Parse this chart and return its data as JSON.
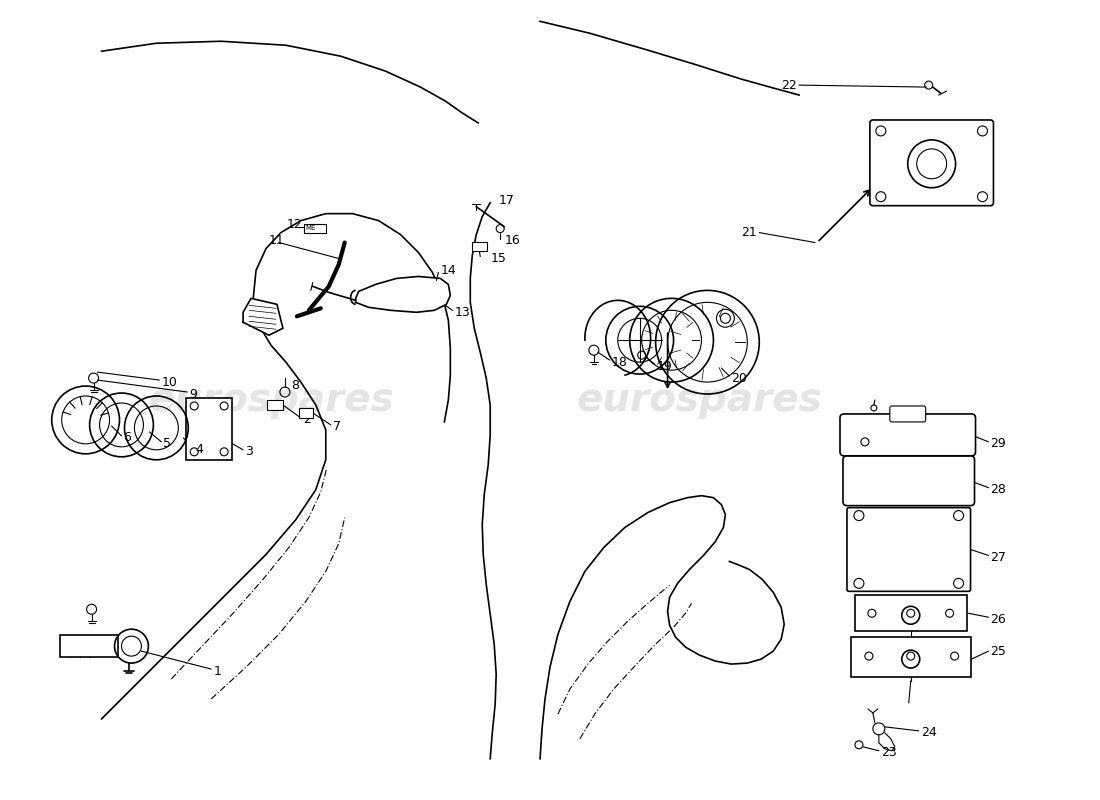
{
  "background_color": "#ffffff",
  "line_color": "#000000",
  "watermark_text": "eurospares",
  "watermark_color": "#b8b8b8",
  "watermark_alpha": 0.38,
  "fig_width": 11.0,
  "fig_height": 8.0,
  "dpi": 100
}
